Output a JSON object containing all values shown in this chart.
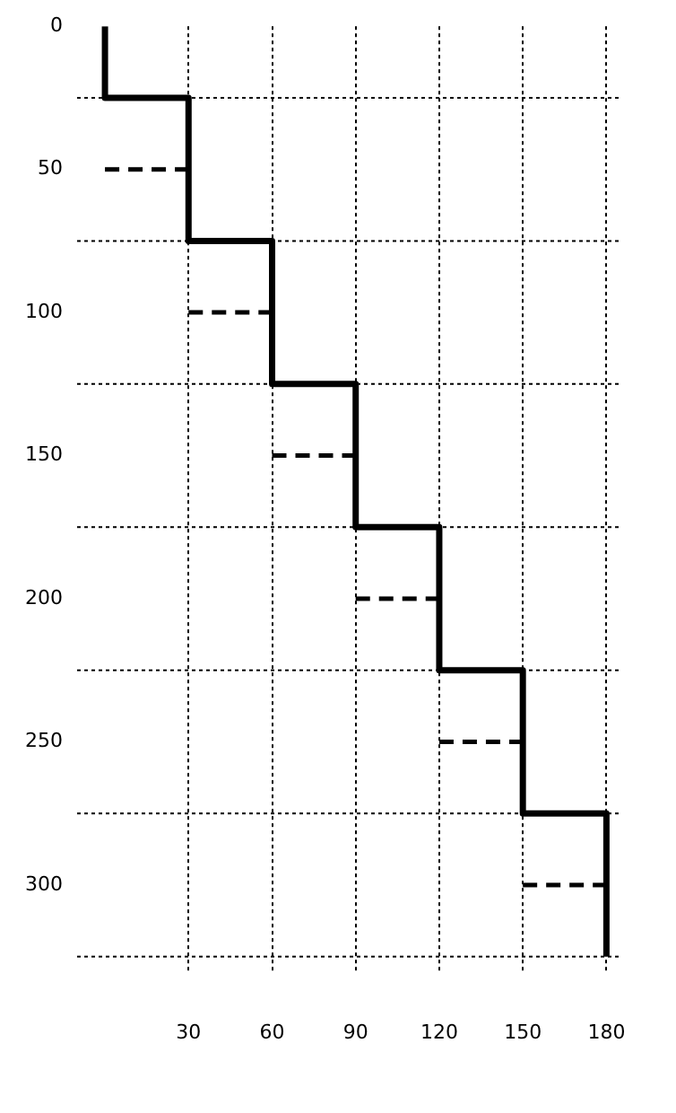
{
  "chart_data": {
    "type": "line",
    "xlim": [
      -10,
      185
    ],
    "ylim": [
      330,
      0
    ],
    "xticks": [
      30,
      60,
      90,
      120,
      150,
      180
    ],
    "yticks": [
      0,
      50,
      100,
      150,
      200,
      250,
      300
    ],
    "grid": "x",
    "legend": false,
    "marker": "none",
    "series": [
      {
        "type": "step",
        "color": "#000000",
        "line_style": "solid",
        "x": [
          0,
          0,
          30,
          60,
          90,
          120,
          150,
          180
        ],
        "values": [
          0,
          25,
          75,
          125,
          175,
          225,
          275,
          325
        ]
      },
      {
        "color": "#000000",
        "line_style": "dashed",
        "x": [
          0,
          30
        ],
        "values": [
          50,
          50
        ]
      },
      {
        "color": "#000000",
        "line_style": "dashed",
        "x": [
          30,
          60
        ],
        "values": [
          100,
          100
        ]
      },
      {
        "color": "#000000",
        "line_style": "dashed",
        "x": [
          60,
          90
        ],
        "values": [
          150,
          150
        ]
      },
      {
        "color": "#000000",
        "line_style": "dashed",
        "x": [
          90,
          120
        ],
        "values": [
          200,
          200
        ]
      },
      {
        "color": "#000000",
        "line_style": "dashed",
        "x": [
          120,
          150
        ],
        "values": [
          250,
          250
        ]
      },
      {
        "color": "#000000",
        "line_style": "dashed",
        "x": [
          150,
          180
        ],
        "values": [
          300,
          300
        ]
      }
    ],
    "ref_lines": [
      {
        "axis": "y",
        "value": 25,
        "line_style": "dotted",
        "color": "#000000"
      },
      {
        "axis": "y",
        "value": 75,
        "line_style": "dotted",
        "color": "#000000"
      },
      {
        "axis": "y",
        "value": 125,
        "line_style": "dotted",
        "color": "#000000"
      },
      {
        "axis": "y",
        "value": 175,
        "line_style": "dotted",
        "color": "#000000"
      },
      {
        "axis": "y",
        "value": 225,
        "line_style": "dotted",
        "color": "#000000"
      },
      {
        "axis": "y",
        "value": 275,
        "line_style": "dotted",
        "color": "#000000"
      },
      {
        "axis": "y",
        "value": 325,
        "line_style": "dotted",
        "color": "#000000"
      }
    ]
  }
}
